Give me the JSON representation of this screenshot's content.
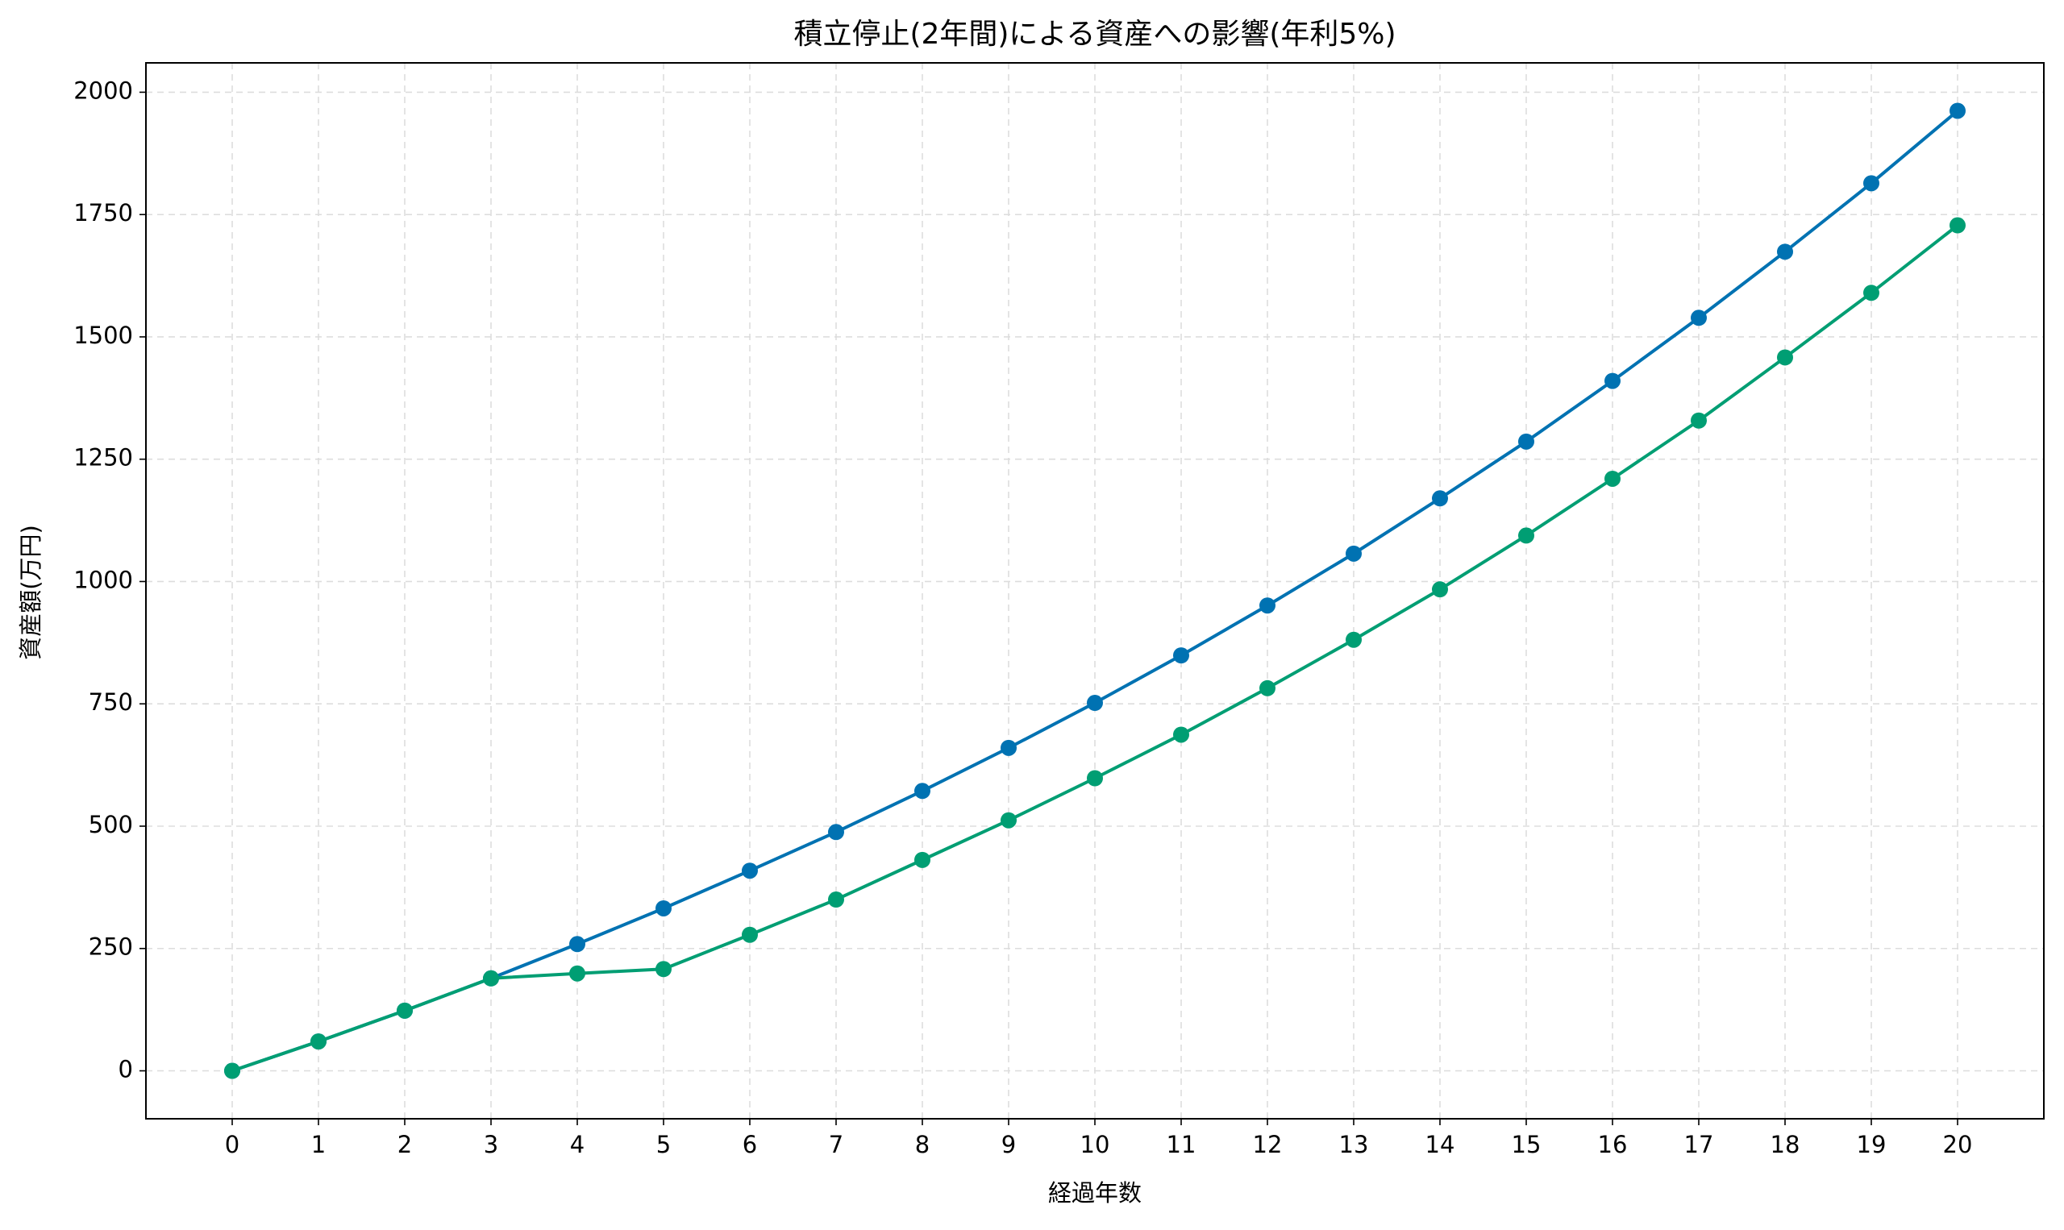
{
  "chart_data": {
    "type": "line",
    "title": "積立停止(2年間)による資産への影響(年利5%)",
    "x_label": "経過年数",
    "y_label": "資産額(万円)",
    "x": [
      0,
      1,
      2,
      3,
      4,
      5,
      6,
      7,
      8,
      9,
      10,
      11,
      12,
      13,
      14,
      15,
      16,
      17,
      18,
      19,
      20
    ],
    "series": [
      {
        "color": "#0072b2",
        "values": [
          0,
          60,
          123,
          189,
          259,
          332,
          409,
          488,
          572,
          660,
          752,
          849,
          951,
          1057,
          1170,
          1286,
          1410,
          1539,
          1674,
          1814,
          1962
        ]
      },
      {
        "color": "#009e73",
        "values": [
          0,
          60,
          123,
          189,
          199,
          208,
          278,
          350,
          431,
          512,
          598,
          687,
          782,
          881,
          984,
          1094,
          1210,
          1329,
          1458,
          1590,
          1728
        ]
      }
    ],
    "xlim": [
      -1,
      21
    ],
    "ylim": [
      -98,
      2060
    ],
    "xticks": [
      0,
      1,
      2,
      3,
      4,
      5,
      6,
      7,
      8,
      9,
      10,
      11,
      12,
      13,
      14,
      15,
      16,
      17,
      18,
      19,
      20
    ],
    "yticks": [
      0,
      250,
      500,
      750,
      1000,
      1250,
      1500,
      1750,
      2000
    ],
    "grid": true
  }
}
